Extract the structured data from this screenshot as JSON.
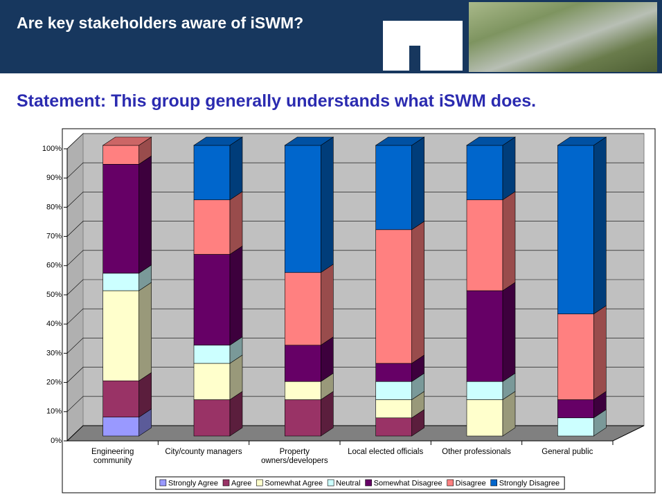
{
  "header": {
    "title": "Are key stakeholders aware of iSWM?"
  },
  "chart_data": {
    "type": "bar",
    "stacked": true,
    "title": "Statement: This group generally understands what iSWM does.",
    "categories": [
      "Engineering community",
      "City/county managers",
      "Property owners/developers",
      "Local elected officials",
      "Other professionals",
      "General public"
    ],
    "series": [
      {
        "name": "Strongly Agree",
        "color": "#9999ff",
        "values": [
          6.5,
          0,
          0,
          0,
          0,
          0
        ]
      },
      {
        "name": "Agree",
        "color": "#993366",
        "values": [
          12.5,
          12.5,
          12.5,
          6.25,
          0,
          0
        ]
      },
      {
        "name": "Somewhat Agree",
        "color": "#ffffcc",
        "values": [
          31,
          12.5,
          6.25,
          6.25,
          12.5,
          0
        ]
      },
      {
        "name": "Neutral",
        "color": "#ccffff",
        "values": [
          6,
          6.25,
          0,
          6.25,
          6.25,
          6.25
        ]
      },
      {
        "name": "Somewhat Disagree",
        "color": "#660066",
        "values": [
          37.5,
          31.25,
          12.5,
          6.25,
          31.25,
          6.25
        ]
      },
      {
        "name": "Disagree",
        "color": "#ff8080",
        "values": [
          6.5,
          18.75,
          25,
          46,
          31.25,
          29.5
        ]
      },
      {
        "name": "Strongly Disagree",
        "color": "#0066cc",
        "values": [
          0,
          18.75,
          43.75,
          29,
          18.75,
          58
        ]
      }
    ],
    "ylim": [
      0,
      100
    ],
    "yticks": [
      {
        "value": 0,
        "label": "0%"
      },
      {
        "value": 10,
        "label": "10%"
      },
      {
        "value": 20,
        "label": "20%"
      },
      {
        "value": 30,
        "label": "30%"
      },
      {
        "value": 40,
        "label": "40%"
      },
      {
        "value": 50,
        "label": "50%"
      },
      {
        "value": 60,
        "label": "60%"
      },
      {
        "value": 70,
        "label": "70%"
      },
      {
        "value": 80,
        "label": "80%"
      },
      {
        "value": 90,
        "label": "90%"
      },
      {
        "value": 100,
        "label": "100%"
      }
    ],
    "grid": true,
    "legend": "bottom"
  }
}
